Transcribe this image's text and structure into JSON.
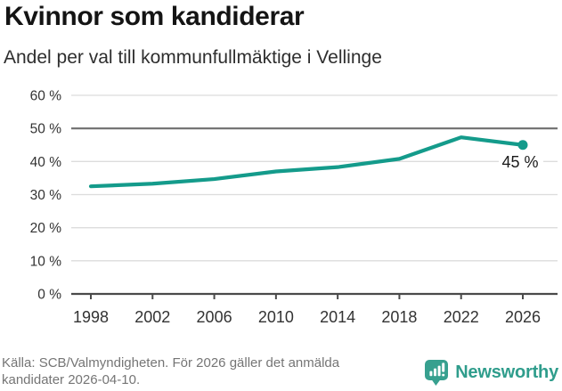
{
  "header": {
    "title": "Kvinnor som kandiderar",
    "subtitle": "Andel per val till kommunfullmäktige i Vellinge"
  },
  "chart_data": {
    "type": "line",
    "title": "Kvinnor som kandiderar",
    "subtitle": "Andel per val till kommunfullmäktige i Vellinge",
    "categories": [
      "1998",
      "2002",
      "2006",
      "2010",
      "2014",
      "2018",
      "2022",
      "2026"
    ],
    "values": [
      32.5,
      33.3,
      34.7,
      37.0,
      38.3,
      40.8,
      47.3,
      45.0
    ],
    "unit": "%",
    "ylim": [
      0,
      60
    ],
    "ytick_step": 10,
    "yticks": [
      "0 %",
      "10 %",
      "20 %",
      "30 %",
      "40 %",
      "50 %",
      "60 %"
    ],
    "grid": true,
    "legend": "none",
    "reference_line_value": 50,
    "end_point_label": "45 %",
    "line_color": "#149b8b"
  },
  "footer": {
    "source_lines": [
      "Källa: SCB/Valmyndigheten. För 2026 gäller det anmälda",
      "kandidater 2026-04-10."
    ],
    "brand_name": "Newsworthy"
  },
  "colors": {
    "accent": "#149b8b",
    "brand_teal": "#2f9d8c",
    "grid_line": "#dcdcdc",
    "reference_line": "#6e6e6e",
    "axis_line": "#4a4a4a",
    "tick_label": "#333333",
    "point_label": "#1a1a1a",
    "source_text": "#757575"
  }
}
